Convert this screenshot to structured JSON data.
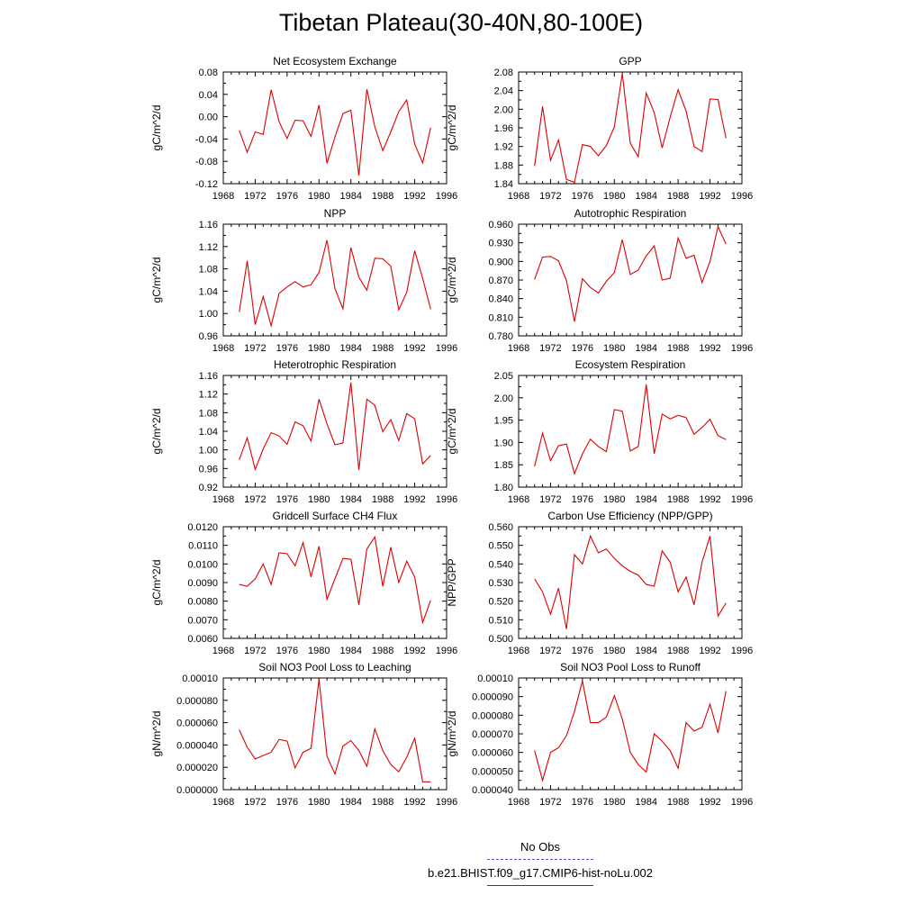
{
  "page": {
    "title": "Tibetan Plateau(30-40N,80-100E)"
  },
  "legend": {
    "obs_label": "No Obs",
    "obs_color": "#5555cc",
    "model_label": "b.e21.BHIST.f09_g17.CMIP6-hist-noLu.002",
    "model_color": "#dd0000"
  },
  "chart_data": [
    {
      "type": "line",
      "title": "Net Ecosystem Exchange",
      "ylabel": "gC/m^2/d",
      "xlim": [
        1968,
        1996
      ],
      "ylim": [
        -0.12,
        0.1
      ],
      "yticks": [
        "-0.12",
        "-0.08",
        "-0.04",
        "0.00",
        "0.04",
        "0.08"
      ],
      "xticks": [
        "1968",
        "1972",
        "1976",
        "1980",
        "1984",
        "1988",
        "1992",
        "1996"
      ],
      "x": [
        1970,
        1971,
        1972,
        1973,
        1974,
        1975,
        1976,
        1977,
        1978,
        1979,
        1980,
        1981,
        1982,
        1983,
        1984,
        1985,
        1986,
        1987,
        1988,
        1989,
        1990,
        1991,
        1992,
        1993,
        1994
      ],
      "values": [
        -0.015,
        -0.058,
        -0.018,
        -0.023,
        0.065,
        0.002,
        -0.031,
        0.005,
        0.004,
        -0.027,
        0.035,
        -0.08,
        -0.028,
        0.018,
        0.025,
        -0.104,
        0.066,
        -0.008,
        -0.055,
        -0.018,
        0.022,
        0.045,
        -0.042,
        -0.079,
        -0.01
      ]
    },
    {
      "type": "line",
      "title": "GPP",
      "ylabel": "gC/m^2/d",
      "xlim": [
        1968,
        1996
      ],
      "ylim": [
        1.84,
        2.08
      ],
      "yticks": [
        "1.84",
        "1.88",
        "1.92",
        "1.96",
        "2.00",
        "2.04",
        "2.08"
      ],
      "xticks": [
        "1968",
        "1972",
        "1976",
        "1980",
        "1984",
        "1988",
        "1992",
        "1996"
      ],
      "x": [
        1970,
        1971,
        1972,
        1973,
        1974,
        1975,
        1976,
        1977,
        1978,
        1979,
        1980,
        1981,
        1982,
        1983,
        1984,
        1985,
        1986,
        1987,
        1988,
        1989,
        1990,
        1991,
        1992,
        1993,
        1994
      ],
      "values": [
        1.878,
        2.006,
        1.89,
        1.934,
        1.849,
        1.843,
        1.924,
        1.92,
        1.9,
        1.922,
        1.962,
        2.077,
        1.927,
        1.898,
        2.035,
        1.993,
        1.917,
        1.983,
        2.042,
        1.996,
        1.92,
        1.909,
        2.022,
        2.021,
        1.938
      ]
    },
    {
      "type": "line",
      "title": "NPP",
      "ylabel": "gC/m^2/d",
      "xlim": [
        1968,
        1996
      ],
      "ylim": [
        0.96,
        1.17
      ],
      "yticks": [
        "0.96",
        "1.00",
        "1.04",
        "1.08",
        "1.12",
        "1.16"
      ],
      "xticks": [
        "1968",
        "1972",
        "1976",
        "1980",
        "1984",
        "1988",
        "1992",
        "1996"
      ],
      "x": [
        1970,
        1971,
        1972,
        1973,
        1974,
        1975,
        1976,
        1977,
        1978,
        1979,
        1980,
        1981,
        1982,
        1983,
        1984,
        1985,
        1986,
        1987,
        1988,
        1989,
        1990,
        1991,
        1992,
        1993,
        1994
      ],
      "values": [
        1.005,
        1.101,
        0.981,
        1.034,
        0.979,
        1.04,
        1.052,
        1.062,
        1.052,
        1.056,
        1.079,
        1.14,
        1.049,
        1.011,
        1.126,
        1.07,
        1.046,
        1.106,
        1.105,
        1.091,
        1.009,
        1.042,
        1.12,
        1.068,
        1.01
      ]
    },
    {
      "type": "line",
      "title": "Autotrophic Respiration",
      "ylabel": "gC/m^2/d",
      "xlim": [
        1968,
        1996
      ],
      "ylim": [
        0.78,
        0.96
      ],
      "yticks": [
        "0.780",
        "0.810",
        "0.840",
        "0.870",
        "0.900",
        "0.930",
        "0.960"
      ],
      "xticks": [
        "1968",
        "1972",
        "1976",
        "1980",
        "1984",
        "1988",
        "1992",
        "1996"
      ],
      "x": [
        1970,
        1971,
        1972,
        1973,
        1974,
        1975,
        1976,
        1977,
        1978,
        1979,
        1980,
        1981,
        1982,
        1983,
        1984,
        1985,
        1986,
        1987,
        1988,
        1989,
        1990,
        1991,
        1992,
        1993,
        1994
      ],
      "values": [
        0.871,
        0.907,
        0.908,
        0.901,
        0.869,
        0.803,
        0.872,
        0.858,
        0.849,
        0.868,
        0.882,
        0.935,
        0.879,
        0.886,
        0.909,
        0.925,
        0.87,
        0.873,
        0.938,
        0.905,
        0.91,
        0.866,
        0.9,
        0.956,
        0.928
      ]
    },
    {
      "type": "line",
      "title": "Heterotrophic Respiration",
      "ylabel": "gC/m^2/d",
      "xlim": [
        1968,
        1996
      ],
      "ylim": [
        0.92,
        1.16
      ],
      "yticks": [
        "0.92",
        "0.96",
        "1.00",
        "1.04",
        "1.08",
        "1.12",
        "1.16"
      ],
      "xticks": [
        "1968",
        "1972",
        "1976",
        "1980",
        "1984",
        "1988",
        "1992",
        "1996"
      ],
      "x": [
        1970,
        1971,
        1972,
        1973,
        1974,
        1975,
        1976,
        1977,
        1978,
        1979,
        1980,
        1981,
        1982,
        1983,
        1984,
        1985,
        1986,
        1987,
        1988,
        1989,
        1990,
        1991,
        1992,
        1993,
        1994
      ],
      "values": [
        0.979,
        1.026,
        0.958,
        1.002,
        1.037,
        1.03,
        1.012,
        1.06,
        1.052,
        1.019,
        1.109,
        1.056,
        1.011,
        1.015,
        1.145,
        0.957,
        1.109,
        1.096,
        1.039,
        1.065,
        1.02,
        1.078,
        1.067,
        0.97,
        0.988
      ]
    },
    {
      "type": "line",
      "title": "Ecosystem Respiration",
      "ylabel": "gC/m^2/d",
      "xlim": [
        1968,
        1996
      ],
      "ylim": [
        1.8,
        2.075
      ],
      "yticks": [
        "1.80",
        "1.85",
        "1.90",
        "1.95",
        "2.00",
        "2.05"
      ],
      "xticks": [
        "1968",
        "1972",
        "1976",
        "1980",
        "1984",
        "1988",
        "1992",
        "1996"
      ],
      "x": [
        1970,
        1971,
        1972,
        1973,
        1974,
        1975,
        1976,
        1977,
        1978,
        1979,
        1980,
        1981,
        1982,
        1983,
        1984,
        1985,
        1986,
        1987,
        1988,
        1989,
        1990,
        1991,
        1992,
        1993,
        1994
      ],
      "values": [
        1.851,
        1.933,
        1.865,
        1.902,
        1.906,
        1.833,
        1.882,
        1.918,
        1.9,
        1.887,
        1.991,
        1.987,
        1.889,
        1.9,
        2.053,
        1.882,
        1.98,
        1.968,
        1.977,
        1.971,
        1.93,
        1.947,
        1.967,
        1.927,
        1.917
      ]
    },
    {
      "type": "line",
      "title": "Gridcell Surface CH4 Flux",
      "ylabel": "gC/m^2/d",
      "xlim": [
        1968,
        1996
      ],
      "ylim": [
        0.006,
        0.012
      ],
      "yticks": [
        "0.0060",
        "0.0070",
        "0.0080",
        "0.0090",
        "0.0100",
        "0.0110",
        "0.0120"
      ],
      "xticks": [
        "1968",
        "1972",
        "1976",
        "1980",
        "1984",
        "1988",
        "1992",
        "1996"
      ],
      "x": [
        1970,
        1971,
        1972,
        1973,
        1974,
        1975,
        1976,
        1977,
        1978,
        1979,
        1980,
        1981,
        1982,
        1983,
        1984,
        1985,
        1986,
        1987,
        1988,
        1989,
        1990,
        1991,
        1992,
        1993,
        1994
      ],
      "values": [
        0.0089,
        0.0088,
        0.0092,
        0.01,
        0.0089,
        0.0106,
        0.01055,
        0.0099,
        0.01115,
        0.0093,
        0.01095,
        0.0081,
        0.0092,
        0.0103,
        0.01025,
        0.0078,
        0.0108,
        0.01145,
        0.0088,
        0.0109,
        0.009,
        0.01015,
        0.0093,
        0.00685,
        0.00805
      ]
    },
    {
      "type": "line",
      "title": "Carbon Use Efficiency (NPP/GPP)",
      "ylabel": "NPP/GPP",
      "xlim": [
        1968,
        1996
      ],
      "ylim": [
        0.5,
        0.56
      ],
      "yticks": [
        "0.500",
        "0.510",
        "0.520",
        "0.530",
        "0.540",
        "0.550",
        "0.560"
      ],
      "xticks": [
        "1968",
        "1972",
        "1976",
        "1980",
        "1984",
        "1988",
        "1992",
        "1996"
      ],
      "x": [
        1970,
        1971,
        1972,
        1973,
        1974,
        1975,
        1976,
        1977,
        1978,
        1979,
        1980,
        1981,
        1982,
        1983,
        1984,
        1985,
        1986,
        1987,
        1988,
        1989,
        1990,
        1991,
        1992,
        1993,
        1994
      ],
      "values": [
        0.532,
        0.525,
        0.513,
        0.527,
        0.505,
        0.545,
        0.54,
        0.555,
        0.546,
        0.548,
        0.543,
        0.539,
        0.536,
        0.534,
        0.529,
        0.528,
        0.547,
        0.541,
        0.525,
        0.533,
        0.518,
        0.541,
        0.555,
        0.512,
        0.519
      ]
    },
    {
      "type": "line",
      "title": "Soil NO3 Pool Loss to Leaching",
      "ylabel": "gN/m^2/d",
      "xlim": [
        1968,
        1996
      ],
      "ylim": [
        0.0,
        0.0001
      ],
      "yticks": [
        "0.000000",
        "0.000020",
        "0.000040",
        "0.000060",
        "0.000080",
        "0.00010"
      ],
      "xticks": [
        "1968",
        "1972",
        "1976",
        "1980",
        "1984",
        "1988",
        "1992",
        "1996"
      ],
      "x": [
        1970,
        1971,
        1972,
        1973,
        1974,
        1975,
        1976,
        1977,
        1978,
        1979,
        1980,
        1981,
        1982,
        1983,
        1984,
        1985,
        1986,
        1987,
        1988,
        1989,
        1990,
        1991,
        1992,
        1993,
        1994
      ],
      "values": [
        5.35e-05,
        3.8e-05,
        2.75e-05,
        3.05e-05,
        3.35e-05,
        4.5e-05,
        4.35e-05,
        1.95e-05,
        3.35e-05,
        3.7e-05,
        9.9e-05,
        3e-05,
        1.4e-05,
        3.9e-05,
        4.4e-05,
        3.5e-05,
        2.1e-05,
        5.45e-05,
        3.5e-05,
        2.25e-05,
        1.6e-05,
        2.9e-05,
        4.6e-05,
        7e-06,
        7e-06
      ]
    },
    {
      "type": "line",
      "title": "Soil NO3 Pool Loss to Runoff",
      "ylabel": "gN/m^2/d",
      "xlim": [
        1968,
        1996
      ],
      "ylim": [
        4e-05,
        0.0001
      ],
      "yticks": [
        "0.000040",
        "0.000050",
        "0.000060",
        "0.000070",
        "0.000080",
        "0.000090",
        "0.00010"
      ],
      "xticks": [
        "1968",
        "1972",
        "1976",
        "1980",
        "1984",
        "1988",
        "1992",
        "1996"
      ],
      "x": [
        1970,
        1971,
        1972,
        1973,
        1974,
        1975,
        1976,
        1977,
        1978,
        1979,
        1980,
        1981,
        1982,
        1983,
        1984,
        1985,
        1986,
        1987,
        1988,
        1989,
        1990,
        1991,
        1992,
        1993,
        1994
      ],
      "values": [
        6.1e-05,
        4.5e-05,
        6e-05,
        6.25e-05,
        6.9e-05,
        8.2e-05,
        9.85e-05,
        7.6e-05,
        7.6e-05,
        7.9e-05,
        9.05e-05,
        7.8e-05,
        6e-05,
        5.35e-05,
        4.95e-05,
        7e-05,
        6.6e-05,
        6.1e-05,
        5.15e-05,
        7.6e-05,
        7.15e-05,
        7.35e-05,
        8.6e-05,
        7.05e-05,
        9.3e-05
      ]
    }
  ]
}
